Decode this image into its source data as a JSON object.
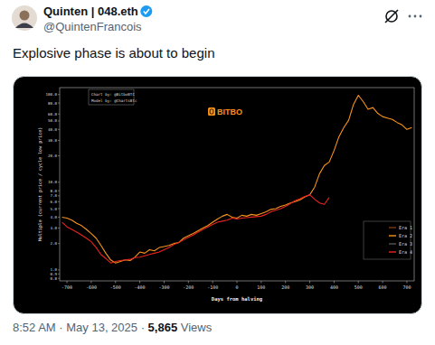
{
  "tweet": {
    "author": "Quinten | 048.eth",
    "handle": "@QuintenFrancois",
    "text": "Explosive phase is about to begin",
    "time": "8:52 AM",
    "separator": "·",
    "date": "May 13, 2025",
    "views": "5,865",
    "views_label": "Views"
  },
  "chart_data": {
    "type": "line",
    "annotations": [
      "Chart by: @BitboBTC",
      "Model by: @ChartsBtc",
      "BITBO"
    ],
    "x_label": "Days from halving",
    "y_label": "Multiple (current price / cycle low price)",
    "x": [
      -720,
      -700,
      -680,
      -660,
      -640,
      -620,
      -600,
      -580,
      -560,
      -540,
      -520,
      -500,
      -480,
      -460,
      -440,
      -420,
      -400,
      -380,
      -360,
      -340,
      -320,
      -300,
      -280,
      -260,
      -240,
      -220,
      -200,
      -180,
      -160,
      -140,
      -120,
      -100,
      -80,
      -60,
      -40,
      -20,
      0,
      20,
      40,
      60,
      80,
      100,
      120,
      140,
      160,
      180,
      200,
      220,
      240,
      260,
      280,
      300,
      320,
      340,
      360,
      380,
      400,
      420,
      440,
      460,
      480,
      500,
      520,
      540,
      560,
      580,
      600,
      620,
      640,
      660,
      680,
      700,
      720
    ],
    "series": [
      {
        "name": "Era 1",
        "color": "#7a3b12",
        "values": [
          null,
          null,
          null,
          null,
          null,
          null,
          null,
          null,
          null,
          null,
          null,
          null,
          null,
          null,
          null,
          null,
          null,
          null,
          null,
          null,
          null,
          null,
          null,
          null,
          null,
          null,
          null,
          null,
          null,
          null,
          null,
          null,
          null,
          null,
          null,
          null,
          null,
          null,
          null,
          null,
          null,
          null,
          null,
          null,
          null,
          null,
          null,
          null,
          null,
          null,
          null,
          null,
          null,
          null,
          null,
          null,
          null,
          null,
          null,
          null,
          null,
          null,
          null,
          null,
          null,
          null,
          null,
          null,
          null,
          null,
          null,
          null,
          null
        ]
      },
      {
        "name": "Era 2",
        "color": "#f7931a",
        "values": [
          4.0,
          3.9,
          3.7,
          3.4,
          3.2,
          2.9,
          2.6,
          2.3,
          1.9,
          1.55,
          1.3,
          1.2,
          1.25,
          1.3,
          1.28,
          1.4,
          1.6,
          1.55,
          1.7,
          1.65,
          1.8,
          1.85,
          1.9,
          2.0,
          2.05,
          2.3,
          2.45,
          2.6,
          2.8,
          3.0,
          3.2,
          3.5,
          3.8,
          4.1,
          4.3,
          4.0,
          3.9,
          4.2,
          4.1,
          4.3,
          4.2,
          4.4,
          4.6,
          4.9,
          5.0,
          5.3,
          5.5,
          5.8,
          6.0,
          6.3,
          6.8,
          7.2,
          8.8,
          12.5,
          15.5,
          17,
          23,
          33,
          42,
          51,
          77,
          98,
          83,
          68,
          71,
          61,
          56,
          54,
          52,
          48,
          45,
          40,
          42
        ]
      },
      {
        "name": "Era 3",
        "color": "#555555",
        "values": [
          null,
          null,
          null,
          null,
          null,
          null,
          null,
          null,
          null,
          null,
          null,
          null,
          null,
          null,
          null,
          null,
          null,
          null,
          null,
          null,
          null,
          null,
          null,
          null,
          null,
          null,
          null,
          null,
          null,
          null,
          null,
          null,
          null,
          null,
          null,
          null,
          null,
          null,
          null,
          null,
          null,
          null,
          null,
          null,
          null,
          null,
          null,
          null,
          null,
          null,
          null,
          null,
          null,
          null,
          null,
          null,
          null,
          null,
          null,
          null,
          null,
          null,
          null,
          null,
          null,
          null,
          null,
          null,
          null,
          null,
          null,
          null,
          null
        ]
      },
      {
        "name": "Era 4",
        "color": "#e8231f",
        "values": [
          3.5,
          3.1,
          2.9,
          2.7,
          2.5,
          2.3,
          2.1,
          1.8,
          1.5,
          1.35,
          1.2,
          1.25,
          1.28,
          1.3,
          1.32,
          1.38,
          1.4,
          1.45,
          1.5,
          1.55,
          1.6,
          1.7,
          1.8,
          1.95,
          2.05,
          2.2,
          2.35,
          2.5,
          2.7,
          2.9,
          3.1,
          3.3,
          3.5,
          3.6,
          3.7,
          3.9,
          3.8,
          3.9,
          3.95,
          4.0,
          4.05,
          4.1,
          4.3,
          4.6,
          4.8,
          5.0,
          5.3,
          5.7,
          6.2,
          6.5,
          6.9,
          7.2,
          6.4,
          5.8,
          5.6,
          6.7,
          null,
          null,
          null,
          null,
          null,
          null,
          null,
          null,
          null,
          null,
          null,
          null,
          null,
          null,
          null,
          null,
          null
        ]
      }
    ],
    "xlim": [
      -730,
      730
    ],
    "xticks": [
      -700,
      -600,
      -500,
      -400,
      -300,
      -200,
      -100,
      0,
      100,
      200,
      300,
      400,
      500,
      600,
      700
    ],
    "ylim": [
      0.75,
      120
    ],
    "yticks": [
      {
        "value": 0.8,
        "label": "0.8"
      },
      {
        "value": 0.9,
        "label": "0.9"
      },
      {
        "value": 1,
        "label": "1.0"
      },
      {
        "value": 2,
        "label": "2.0"
      },
      {
        "value": 3,
        "label": "3.0"
      },
      {
        "value": 4,
        "label": "4.0"
      },
      {
        "value": 5,
        "label": "5.0"
      },
      {
        "value": 6,
        "label": "6.0"
      },
      {
        "value": 7,
        "label": "7.0"
      },
      {
        "value": 8,
        "label": "8.0"
      },
      {
        "value": 10,
        "label": "10.0"
      },
      {
        "value": 20,
        "label": "20.0"
      },
      {
        "value": 30,
        "label": "30.0"
      },
      {
        "value": 40,
        "label": "40.0"
      },
      {
        "value": 50,
        "label": "50.0"
      },
      {
        "value": 60,
        "label": "60.0"
      },
      {
        "value": 80,
        "label": "80.0"
      },
      {
        "value": 100,
        "label": "100.0"
      }
    ],
    "log": "y",
    "grid": false,
    "legend": "lower right"
  }
}
